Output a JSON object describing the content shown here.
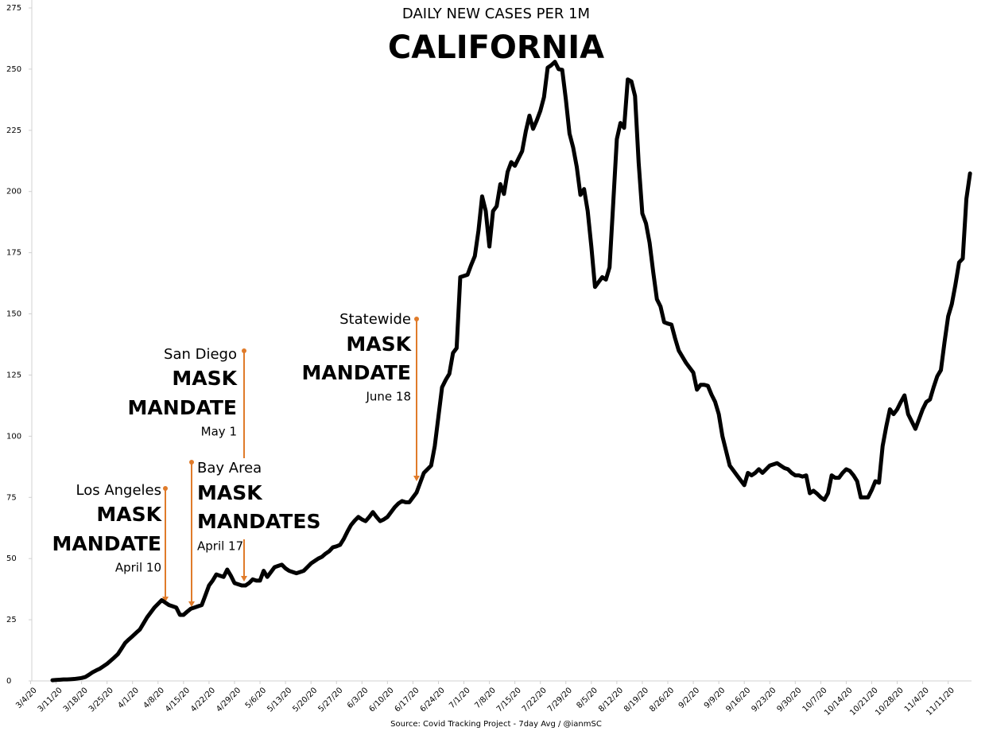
{
  "chart_data": {
    "type": "line",
    "title": "CALIFORNIA",
    "subtitle": "DAILY NEW CASES PER 1M",
    "source": "Source: Covid Tracking Project - 7day Avg / @ianmSC",
    "color": "#000000",
    "ylim": [
      0,
      275
    ],
    "yticks": [
      0,
      25,
      50,
      75,
      100,
      125,
      150,
      175,
      200,
      225,
      250,
      275
    ],
    "categories": [
      "3/4/20",
      null,
      null,
      null,
      null,
      null,
      null,
      "3/11/20",
      null,
      null,
      null,
      null,
      null,
      null,
      "3/18/20",
      null,
      null,
      null,
      null,
      null,
      null,
      "3/25/20",
      null,
      null,
      null,
      null,
      null,
      null,
      "4/1/20",
      null,
      null,
      null,
      null,
      null,
      null,
      "4/8/20",
      null,
      null,
      null,
      null,
      null,
      null,
      "4/15/20",
      null,
      null,
      null,
      null,
      null,
      null,
      "4/22/20",
      null,
      null,
      null,
      null,
      null,
      null,
      "4/29/20",
      null,
      null,
      null,
      null,
      null,
      null,
      "5/6/20",
      null,
      null,
      null,
      null,
      null,
      null,
      "5/13/20",
      null,
      null,
      null,
      null,
      null,
      null,
      "5/20/20",
      null,
      null,
      null,
      null,
      null,
      null,
      "5/27/20",
      null,
      null,
      null,
      null,
      null,
      null,
      "6/3/20",
      null,
      null,
      null,
      null,
      null,
      null,
      "6/10/20",
      null,
      null,
      null,
      null,
      null,
      null,
      "6/17/20",
      null,
      null,
      null,
      null,
      null,
      null,
      "6/24/20",
      null,
      null,
      null,
      null,
      null,
      null,
      "7/1/20",
      null,
      null,
      null,
      null,
      null,
      null,
      "7/8/20",
      null,
      null,
      null,
      null,
      null,
      null,
      "7/15/20",
      null,
      null,
      null,
      null,
      null,
      null,
      "7/22/20",
      null,
      null,
      null,
      null,
      null,
      null,
      "7/29/20",
      null,
      null,
      null,
      null,
      null,
      null,
      "8/5/20",
      null,
      null,
      null,
      null,
      null,
      null,
      "8/12/20",
      null,
      null,
      null,
      null,
      null,
      null,
      "8/19/20",
      null,
      null,
      null,
      null,
      null,
      null,
      "8/26/20",
      null,
      null,
      null,
      null,
      null,
      null,
      "9/2/20",
      null,
      null,
      null,
      null,
      null,
      null,
      "9/9/20",
      null,
      null,
      null,
      null,
      null,
      null,
      "9/16/20",
      null,
      null,
      null,
      null,
      null,
      null,
      "9/23/20",
      null,
      null,
      null,
      null,
      null,
      null,
      "9/30/20",
      null,
      null,
      null,
      null,
      null,
      null,
      "10/7/20",
      null,
      null,
      null,
      null,
      null,
      null,
      "10/14/20",
      null,
      null,
      null,
      null,
      null,
      null,
      "10/21/20",
      null,
      null,
      null,
      null,
      null,
      null,
      "10/28/20",
      null,
      null,
      null,
      null,
      null,
      null,
      "11/4/20",
      null,
      null,
      null,
      null,
      null,
      null,
      "11/11/20",
      null,
      null,
      null,
      null,
      null,
      null
    ],
    "values": [
      null,
      null,
      null,
      null,
      null,
      null,
      0.3,
      0.4,
      0.5,
      0.6,
      0.6,
      0.7,
      0.8,
      1,
      1.2,
      1.6,
      2.5,
      3.5,
      4.3,
      5,
      6,
      7,
      8.3,
      9.6,
      11,
      13.3,
      15.6,
      17,
      18.3,
      19.7,
      21,
      23.5,
      26,
      28,
      30,
      31.5,
      33,
      32,
      31,
      30.5,
      30,
      27,
      27,
      28.3,
      29.5,
      30,
      30.5,
      31,
      35,
      39,
      41,
      43.5,
      43,
      42.5,
      45.5,
      43,
      40,
      39.5,
      39,
      39,
      40,
      41.5,
      41,
      41,
      45,
      42.5,
      44.5,
      46.5,
      47,
      47.5,
      46,
      45,
      44.5,
      44,
      44.5,
      45,
      46.5,
      48,
      49,
      50,
      50.7,
      52,
      53,
      54.6,
      55,
      55.6,
      58,
      61,
      63.7,
      65.5,
      67,
      66,
      65.3,
      67,
      69,
      67,
      65.3,
      66,
      67,
      69,
      71,
      72.5,
      73.5,
      73,
      73,
      75,
      77,
      81,
      85,
      86.5,
      88,
      96,
      108,
      120,
      123,
      125.5,
      134,
      136,
      165,
      165.5,
      166,
      170,
      173.6,
      184,
      198,
      192,
      177.5,
      192,
      194,
      203,
      199,
      208,
      212,
      210.5,
      213.5,
      216.5,
      224.6,
      231,
      225.6,
      229,
      233,
      238.6,
      250.6,
      251.6,
      253,
      250,
      249.7,
      237.6,
      223.7,
      218,
      210,
      198.6,
      201,
      192,
      177.5,
      161,
      163,
      165,
      164,
      169,
      195,
      221.4,
      228,
      226,
      245.8,
      245,
      239,
      211.6,
      191,
      187,
      179,
      167,
      156,
      153,
      146.6,
      146,
      145.6,
      140,
      135,
      132.5,
      130,
      128,
      126,
      119,
      121,
      121,
      120.6,
      117,
      114,
      109,
      100,
      94,
      88,
      86,
      84,
      82,
      80,
      85,
      84,
      85,
      86.5,
      85,
      86.5,
      88,
      88.5,
      89,
      88,
      87,
      86.5,
      85,
      84,
      84,
      83.5,
      84,
      76.7,
      77.7,
      76.5,
      75,
      74,
      76.7,
      84,
      83,
      83,
      85,
      86.5,
      85.8,
      84,
      81.6,
      75,
      75,
      75,
      78,
      81.6,
      81,
      96,
      104,
      111,
      109,
      111,
      114,
      116.7,
      109,
      106,
      103,
      107,
      111,
      114,
      115,
      120,
      124.5,
      127,
      138.5,
      149,
      154,
      162,
      171,
      172.6,
      197,
      207.4
    ],
    "annotations": [
      {
        "place": "Los Angeles",
        "label": "MASK",
        "label2": "MANDATE",
        "date": "April 10"
      },
      {
        "place": "Bay Area",
        "label": "MASK",
        "label2": "MANDATES",
        "date": "April 17"
      },
      {
        "place": "San Diego",
        "label": "MASK",
        "label2": "MANDATE",
        "date": "May 1"
      },
      {
        "place": "Statewide",
        "label": "MASK",
        "label2": "MANDATE",
        "date": "June 18"
      }
    ]
  }
}
